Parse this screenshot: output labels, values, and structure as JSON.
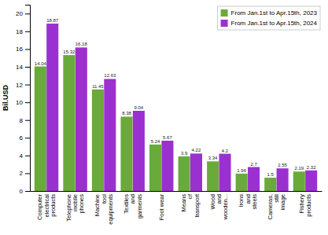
{
  "chart_data": {
    "type": "bar",
    "categories": [
      "Computer\nelectrical\nproducts",
      "Telephone\nmobile\nphones",
      "Machine\ntool\nequipments",
      "Textiles\nand\ngarments",
      "Foot wear",
      "Means\nof\ntransport",
      "Wood\nand\nwooden...",
      "Irons\nand\nsteels",
      "Cameras,\nstill\nimage",
      "Fishery\nproducts"
    ],
    "series": [
      {
        "name": "From Jan.1st to Apr.15th, 2023",
        "color": "#6aaa3a",
        "values": [
          14.04,
          15.32,
          11.45,
          8.38,
          5.24,
          3.9,
          3.34,
          1.96,
          1.5,
          2.19
        ]
      },
      {
        "name": "From Jan.1st to Apr.15th, 2024",
        "color": "#9b30d0",
        "values": [
          18.87,
          16.18,
          12.63,
          9.04,
          5.67,
          4.22,
          4.2,
          2.7,
          2.55,
          2.32
        ]
      }
    ],
    "ylabel": "Bil.USD",
    "ylim": [
      0,
      21
    ],
    "yticks": [
      0,
      2,
      4,
      6,
      8,
      10,
      12,
      14,
      16,
      18,
      20
    ],
    "data_labels": true,
    "legend": "upper right",
    "grid": false
  }
}
